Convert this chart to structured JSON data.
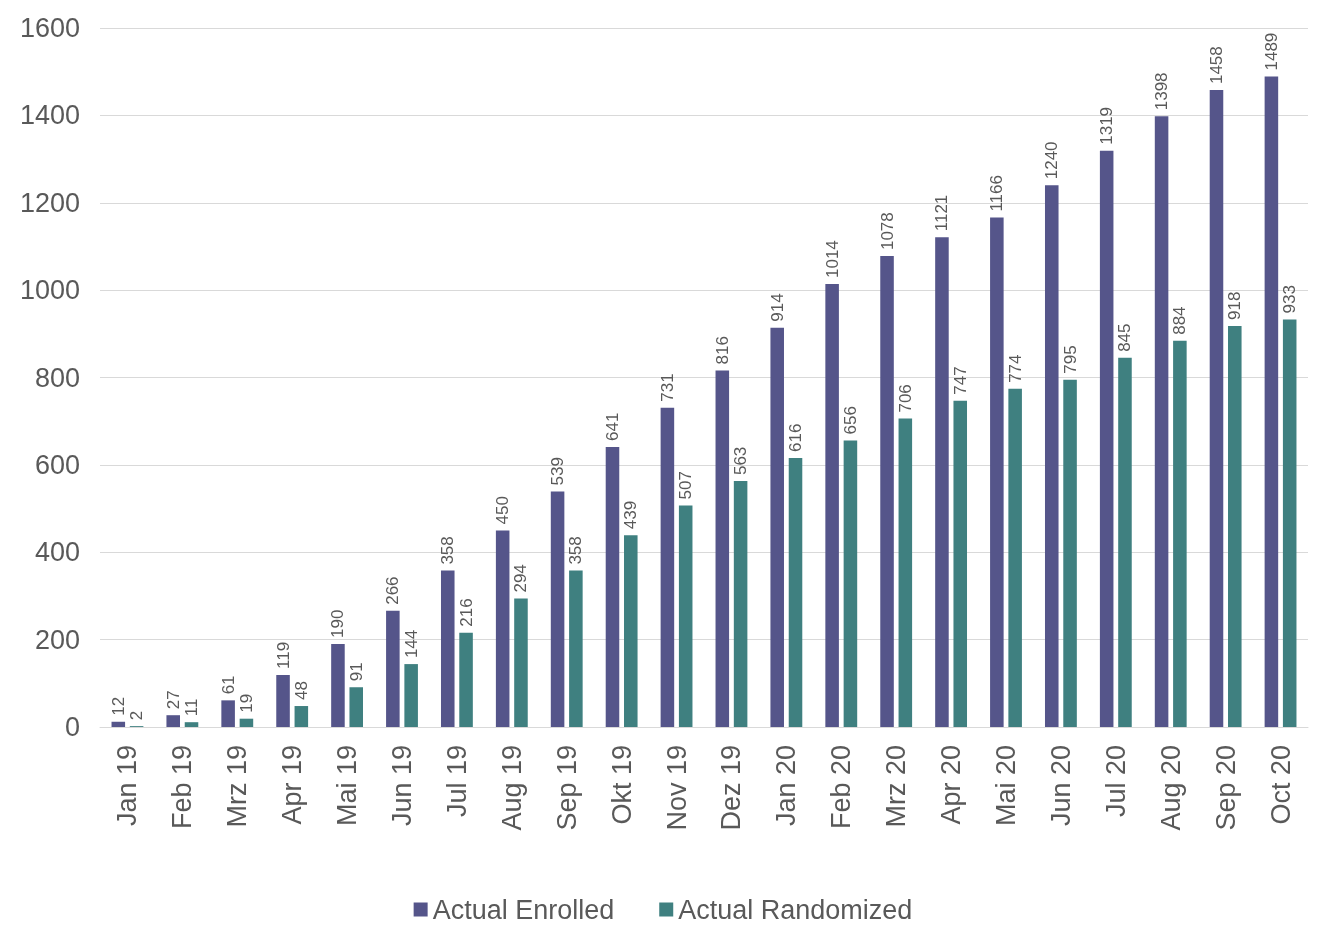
{
  "chart_data": {
    "type": "bar",
    "categories": [
      "Jan 19",
      "Feb 19",
      "Mrz 19",
      "Apr 19",
      "Mai 19",
      "Jun 19",
      "Jul 19",
      "Aug 19",
      "Sep 19",
      "Okt 19",
      "Nov 19",
      "Dez 19",
      "Jan 20",
      "Feb 20",
      "Mrz 20",
      "Apr 20",
      "Mai 20",
      "Jun 20",
      "Jul 20",
      "Aug 20",
      "Sep 20",
      "Oct 20"
    ],
    "series": [
      {
        "name": "Actual Enrolled",
        "color": "#55558a",
        "values": [
          12,
          27,
          61,
          119,
          190,
          266,
          358,
          450,
          539,
          641,
          731,
          816,
          914,
          1014,
          1078,
          1121,
          1166,
          1240,
          1319,
          1398,
          1458,
          1489
        ]
      },
      {
        "name": "Actual Randomized",
        "color": "#3f8080",
        "values": [
          2,
          11,
          19,
          48,
          91,
          144,
          216,
          294,
          358,
          439,
          507,
          563,
          616,
          656,
          706,
          747,
          774,
          795,
          845,
          884,
          918,
          933
        ]
      }
    ],
    "ylim": [
      0,
      1600
    ],
    "yticks": [
      0,
      200,
      400,
      600,
      800,
      1000,
      1200,
      1400,
      1600
    ],
    "grid": "y",
    "legend": "bottom",
    "data_labels": true
  }
}
